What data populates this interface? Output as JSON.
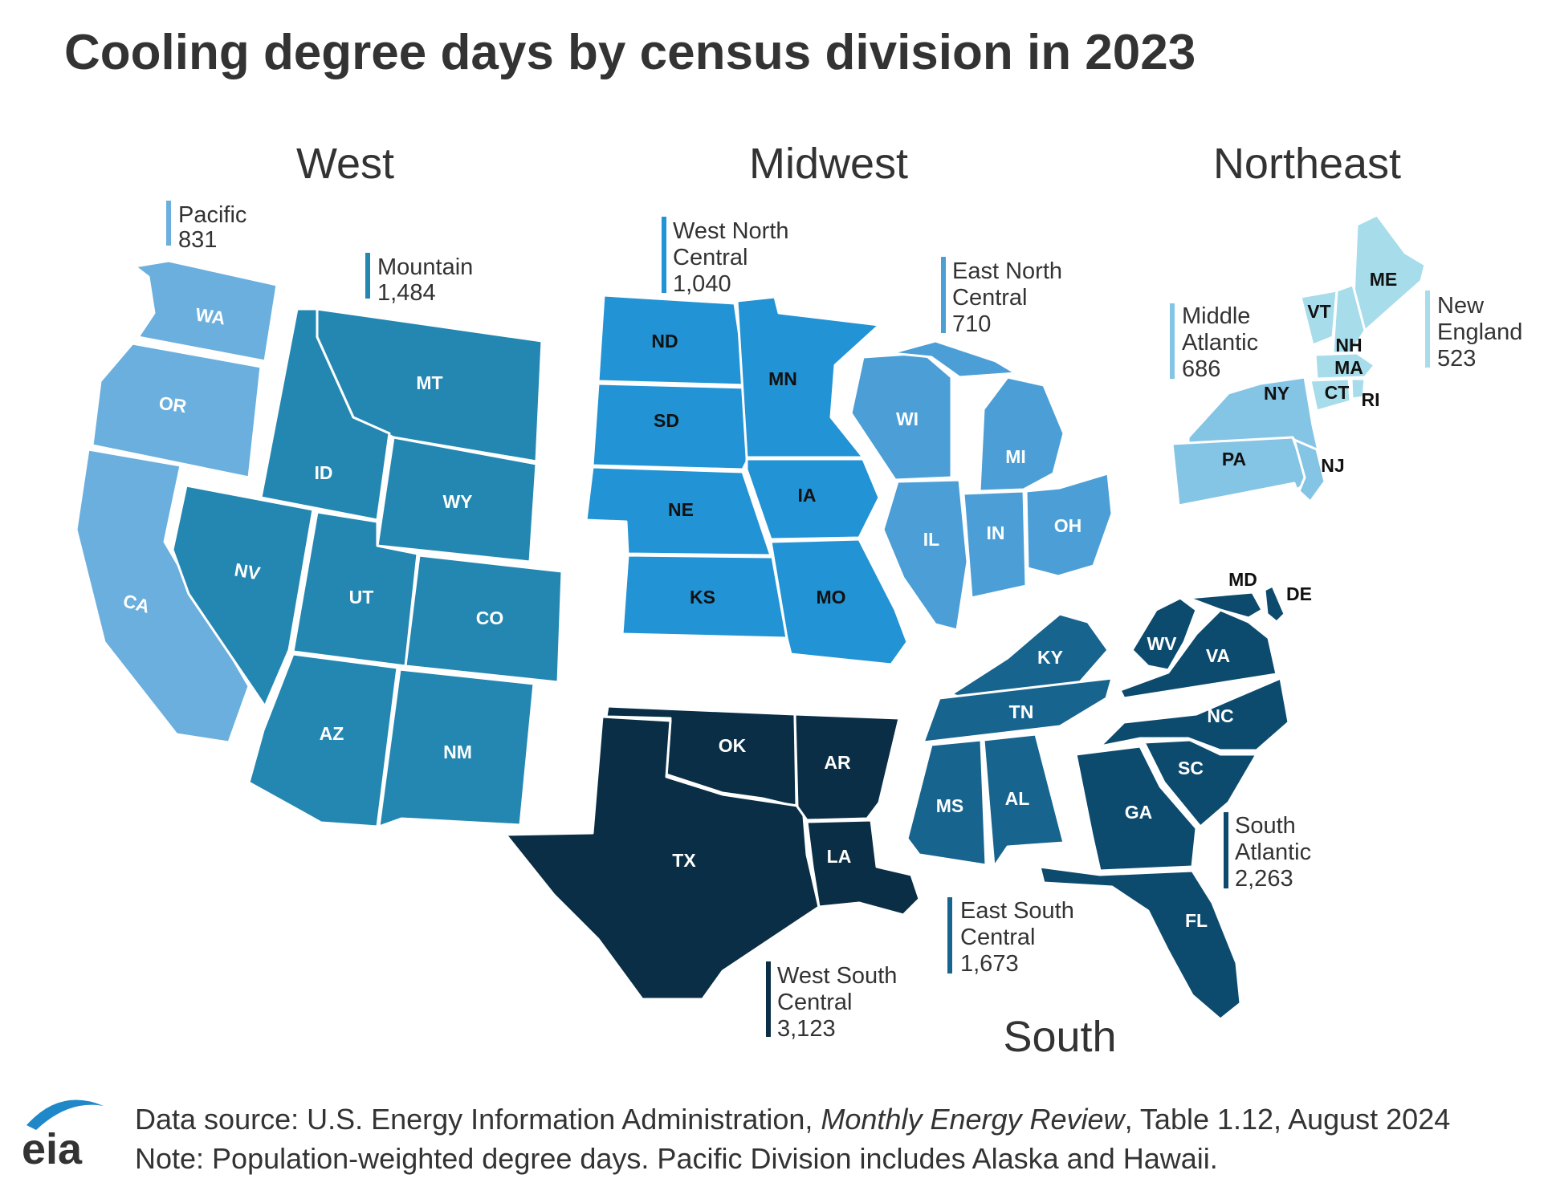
{
  "title": "Cooling degree days by census division in 2023",
  "regions": {
    "west": "West",
    "midwest": "Midwest",
    "northeast": "Northeast",
    "south": "South"
  },
  "divisions": {
    "pacific": {
      "name_lines": [
        "Pacific"
      ],
      "value": "831",
      "color": "#6aafde"
    },
    "mountain": {
      "name_lines": [
        "Mountain"
      ],
      "value": "1,484",
      "color": "#2387b1"
    },
    "wnc": {
      "name_lines": [
        "West North",
        "Central"
      ],
      "value": "1,040",
      "color": "#2293d4"
    },
    "enc": {
      "name_lines": [
        "East North",
        "Central"
      ],
      "value": "710",
      "color": "#4b9fd6"
    },
    "mid_atlantic": {
      "name_lines": [
        "Middle",
        "Atlantic"
      ],
      "value": "686",
      "color": "#84c4e4"
    },
    "new_england": {
      "name_lines": [
        "New",
        "England"
      ],
      "value": "523",
      "color": "#a7dceb"
    },
    "wsc": {
      "name_lines": [
        "West South",
        "Central"
      ],
      "value": "3,123",
      "color": "#0a2e45"
    },
    "esc": {
      "name_lines": [
        "East South",
        "Central"
      ],
      "value": "1,673",
      "color": "#17648e"
    },
    "south_atlantic": {
      "name_lines": [
        "South",
        "Atlantic"
      ],
      "value": "2,263",
      "color": "#0c4b6e"
    }
  },
  "states": {
    "WA": "WA",
    "OR": "OR",
    "CA": "CA",
    "MT": "MT",
    "ID": "ID",
    "WY": "WY",
    "NV": "NV",
    "UT": "UT",
    "CO": "CO",
    "AZ": "AZ",
    "NM": "NM",
    "ND": "ND",
    "SD": "SD",
    "NE": "NE",
    "KS": "KS",
    "MN": "MN",
    "IA": "IA",
    "MO": "MO",
    "WI": "WI",
    "MI": "MI",
    "IL": "IL",
    "IN": "IN",
    "OH": "OH",
    "NY": "NY",
    "PA": "PA",
    "NJ": "NJ",
    "ME": "ME",
    "VT": "VT",
    "NH": "NH",
    "MA": "MA",
    "CT": "CT",
    "RI": "RI",
    "OK": "OK",
    "TX": "TX",
    "AR": "AR",
    "LA": "LA",
    "KY": "KY",
    "TN": "TN",
    "MS": "MS",
    "AL": "AL",
    "WV": "WV",
    "VA": "VA",
    "NC": "NC",
    "SC": "SC",
    "GA": "GA",
    "FL": "FL",
    "MD": "MD",
    "DE": "DE"
  },
  "footer": {
    "source_prefix": "Data source: U.S. Energy Information Administration, ",
    "source_italic": "Monthly Energy Review",
    "source_suffix": ", Table 1.12, August 2024",
    "note": "Note: Population-weighted degree days. Pacific Division includes Alaska and Hawaii."
  },
  "logo_text": "eia"
}
